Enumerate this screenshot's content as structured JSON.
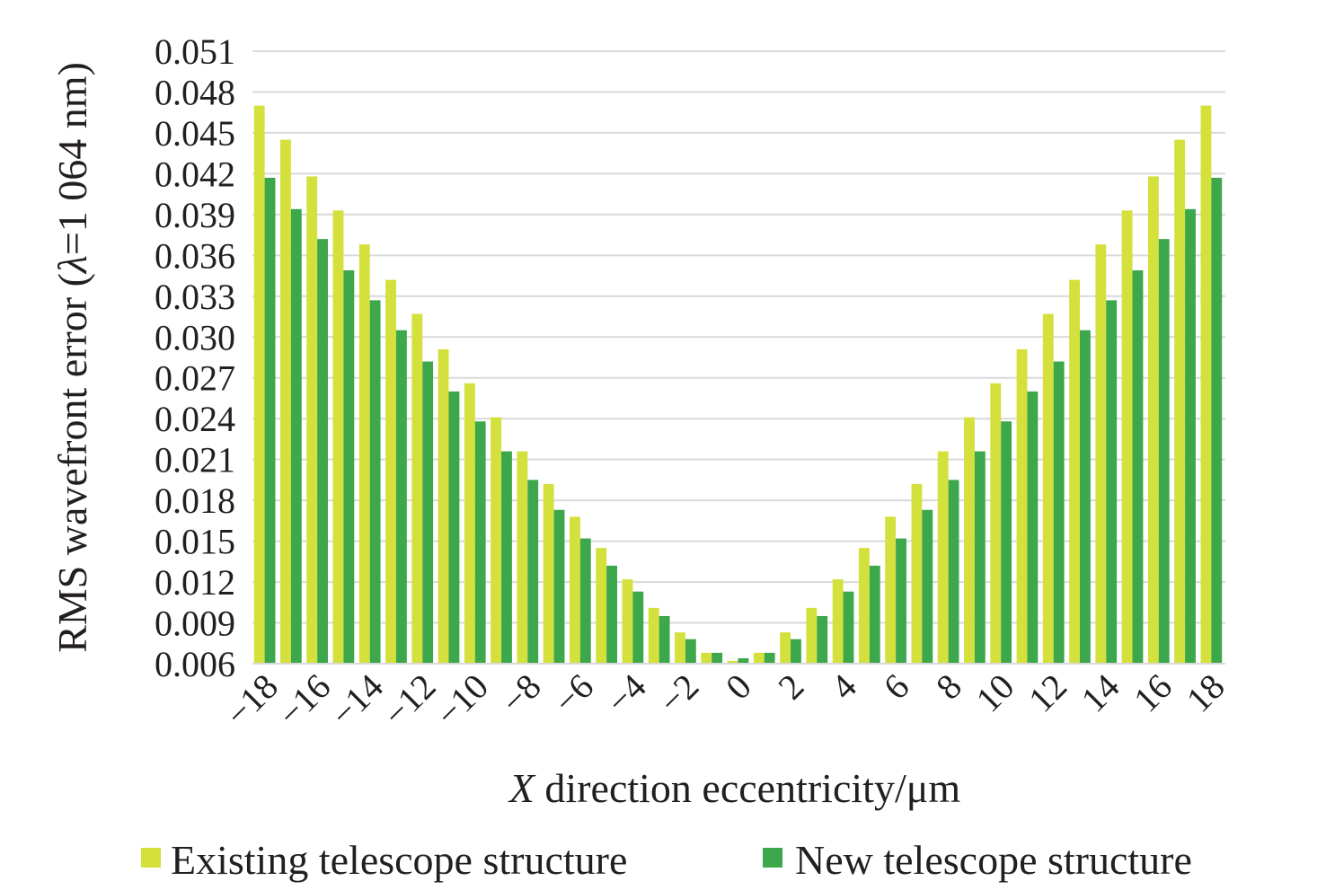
{
  "chart_data": {
    "type": "bar",
    "xlabel_italic": "X",
    "xlabel_rest": " direction eccentricity/μm",
    "ylabel_pre": "RMS wavefront error (",
    "ylabel_italic": "λ",
    "ylabel_post": "=1 064 nm)",
    "ylim": [
      0.006,
      0.051
    ],
    "yticks": [
      "0.006",
      "0.009",
      "0.012",
      "0.015",
      "0.018",
      "0.021",
      "0.024",
      "0.027",
      "0.030",
      "0.033",
      "0.036",
      "0.039",
      "0.042",
      "0.045",
      "0.048",
      "0.051"
    ],
    "ytick_values": [
      0.006,
      0.009,
      0.012,
      0.015,
      0.018,
      0.021,
      0.024,
      0.027,
      0.03,
      0.033,
      0.036,
      0.039,
      0.042,
      0.045,
      0.048,
      0.051
    ],
    "grid": true,
    "legend_position": "bottom",
    "categories": [
      -18,
      -17,
      -16,
      -15,
      -14,
      -13,
      -12,
      -11,
      -10,
      -9,
      -8,
      -7,
      -6,
      -5,
      -4,
      -3,
      -2,
      -1,
      0,
      1,
      2,
      3,
      4,
      5,
      6,
      7,
      8,
      9,
      10,
      11,
      12,
      13,
      14,
      15,
      16,
      17,
      18
    ],
    "xtick_labels": [
      "−18",
      "−16",
      "−14",
      "−12",
      "−10",
      "−8",
      "−6",
      "−4",
      "−2",
      "0",
      "2",
      "4",
      "6",
      "8",
      "10",
      "12",
      "14",
      "16",
      "18"
    ],
    "series": [
      {
        "name": "Existing telescope structure",
        "color": "#d4e03c",
        "values": [
          0.047,
          0.0445,
          0.0418,
          0.0393,
          0.0368,
          0.0342,
          0.0317,
          0.0291,
          0.0266,
          0.0241,
          0.0216,
          0.0192,
          0.0168,
          0.0145,
          0.0122,
          0.0101,
          0.0083,
          0.0068,
          0.0062,
          0.0068,
          0.0083,
          0.0101,
          0.0122,
          0.0145,
          0.0168,
          0.0192,
          0.0216,
          0.0241,
          0.0266,
          0.0291,
          0.0317,
          0.0342,
          0.0368,
          0.0393,
          0.0418,
          0.0445,
          0.047
        ]
      },
      {
        "name": "New telescope structure",
        "color": "#3da74c",
        "values": [
          0.0417,
          0.0394,
          0.0372,
          0.0349,
          0.0327,
          0.0305,
          0.0282,
          0.026,
          0.0238,
          0.0216,
          0.0195,
          0.0173,
          0.0152,
          0.0132,
          0.0113,
          0.0095,
          0.0078,
          0.0068,
          0.0064,
          0.0068,
          0.0078,
          0.0095,
          0.0113,
          0.0132,
          0.0152,
          0.0173,
          0.0195,
          0.0216,
          0.0238,
          0.026,
          0.0282,
          0.0305,
          0.0327,
          0.0349,
          0.0372,
          0.0394,
          0.0417
        ]
      }
    ]
  }
}
